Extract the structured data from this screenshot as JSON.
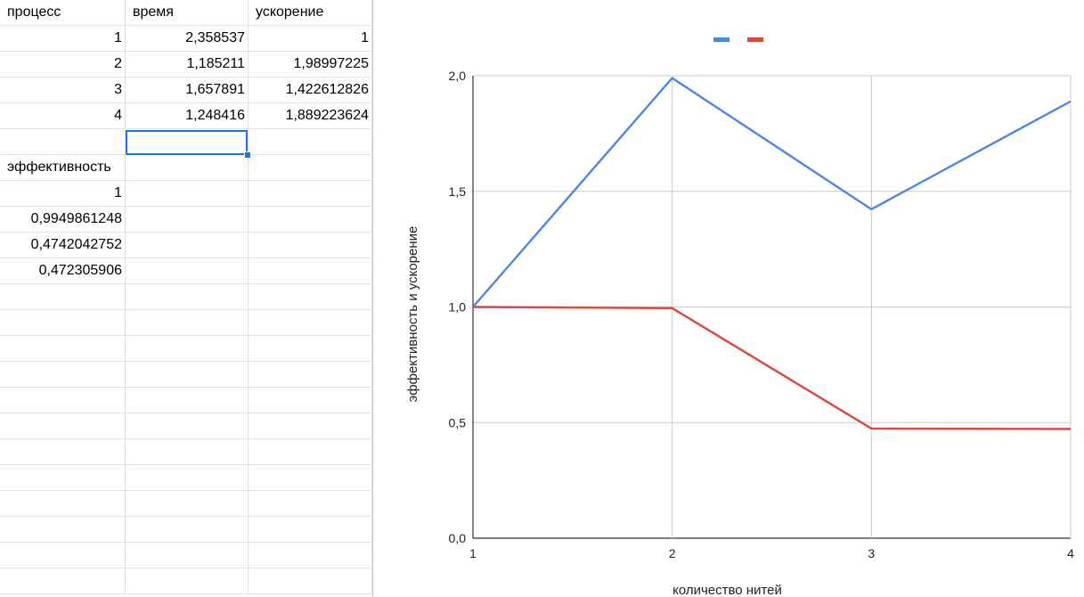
{
  "sheet": {
    "rows": [
      [
        "процесс",
        "время",
        "ускорение"
      ],
      [
        "1",
        "2,358537",
        "1"
      ],
      [
        "2",
        "1,185211",
        "1,98997225"
      ],
      [
        "3",
        "1,657891",
        "1,422612826"
      ],
      [
        "4",
        "1,248416",
        "1,889223624"
      ],
      [
        "",
        "",
        ""
      ],
      [
        "эффективность",
        "",
        ""
      ],
      [
        "1",
        "",
        ""
      ],
      [
        "0,9949861248",
        "",
        ""
      ],
      [
        "0,4742042752",
        "",
        ""
      ],
      [
        "0,472305906",
        "",
        ""
      ]
    ]
  },
  "chart_data": {
    "type": "line",
    "x": [
      1,
      2,
      3,
      4
    ],
    "xlim": [
      1,
      4
    ],
    "ylim": [
      0,
      2
    ],
    "xticks": [
      "1",
      "2",
      "3",
      "4"
    ],
    "yticks": [
      "0,0",
      "0,5",
      "1,0",
      "1,5",
      "2,0"
    ],
    "xlabel": "количество нитей",
    "ylabel": "эффективность и ускорение",
    "grid": true,
    "legend_position": "top",
    "series": [
      {
        "color": "#4a86e8",
        "values": [
          1,
          1.98997225,
          1.422612826,
          1.889223624
        ]
      },
      {
        "color": "#e0443a",
        "values": [
          1,
          0.9949861248,
          0.4742042752,
          0.472305906
        ]
      }
    ]
  }
}
